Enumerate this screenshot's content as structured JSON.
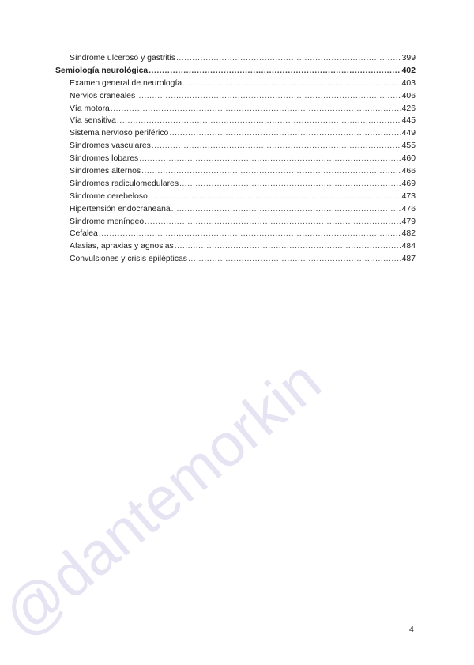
{
  "watermark": "@dantemorkin",
  "toc": [
    {
      "title": "Síndrome ulceroso y gastritis",
      "page": "399",
      "level": "sub"
    },
    {
      "title": "Semiología neurológica",
      "page": "402",
      "level": "main"
    },
    {
      "title": "Examen general de neurología",
      "page": "403",
      "level": "sub"
    },
    {
      "title": "Nervios craneales",
      "page": "406",
      "level": "sub"
    },
    {
      "title": "Vía motora",
      "page": "426",
      "level": "sub"
    },
    {
      "title": "Vía sensitiva",
      "page": "445",
      "level": "sub"
    },
    {
      "title": "Sistema nervioso periférico",
      "page": "449",
      "level": "sub"
    },
    {
      "title": "Síndromes vasculares",
      "page": "455",
      "level": "sub"
    },
    {
      "title": "Síndromes lobares",
      "page": "460",
      "level": "sub"
    },
    {
      "title": "Síndromes alternos",
      "page": "466",
      "level": "sub"
    },
    {
      "title": "Síndromes radiculomedulares",
      "page": "469",
      "level": "sub"
    },
    {
      "title": "Síndrome cerebeloso",
      "page": "473",
      "level": "sub"
    },
    {
      "title": "Hipertensión endocraneana",
      "page": "476",
      "level": "sub"
    },
    {
      "title": "Síndrome meníngeo",
      "page": "479",
      "level": "sub"
    },
    {
      "title": "Cefalea",
      "page": "482",
      "level": "sub"
    },
    {
      "title": "Afasias, apraxias y agnosias",
      "page": "484",
      "level": "sub"
    },
    {
      "title": "Convulsiones y crisis epilépticas",
      "page": "487",
      "level": "sub"
    }
  ],
  "page_number": "4"
}
